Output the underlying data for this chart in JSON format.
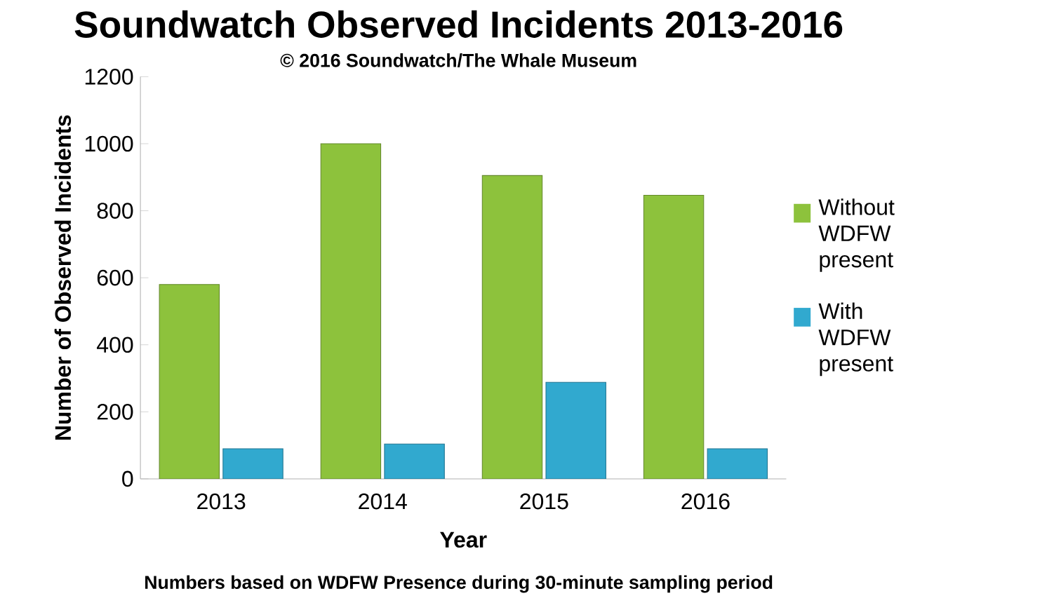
{
  "chart_data": {
    "type": "bar",
    "title": "Soundwatch Observed Incidents 2013-2016",
    "subtitle": "© 2016 Soundwatch/The Whale Museum",
    "xlabel": "Year",
    "ylabel": "Number of Observed Incidents",
    "annotations": [
      "Numbers based on WDFW Presence during 30-minute sampling period"
    ],
    "categories": [
      "2013",
      "2014",
      "2015",
      "2016"
    ],
    "series": [
      {
        "name": "Without WDFW present",
        "color": "#8dc23c",
        "values": [
          580,
          1000,
          905,
          846
        ]
      },
      {
        "name": "With WDFW present",
        "color": "#31a9cf",
        "values": [
          90,
          104,
          288,
          90
        ]
      }
    ],
    "ylim": [
      0,
      1200
    ],
    "yticks": [
      0,
      200,
      400,
      600,
      800,
      1000,
      1200
    ],
    "grid": false,
    "legend": "right"
  }
}
